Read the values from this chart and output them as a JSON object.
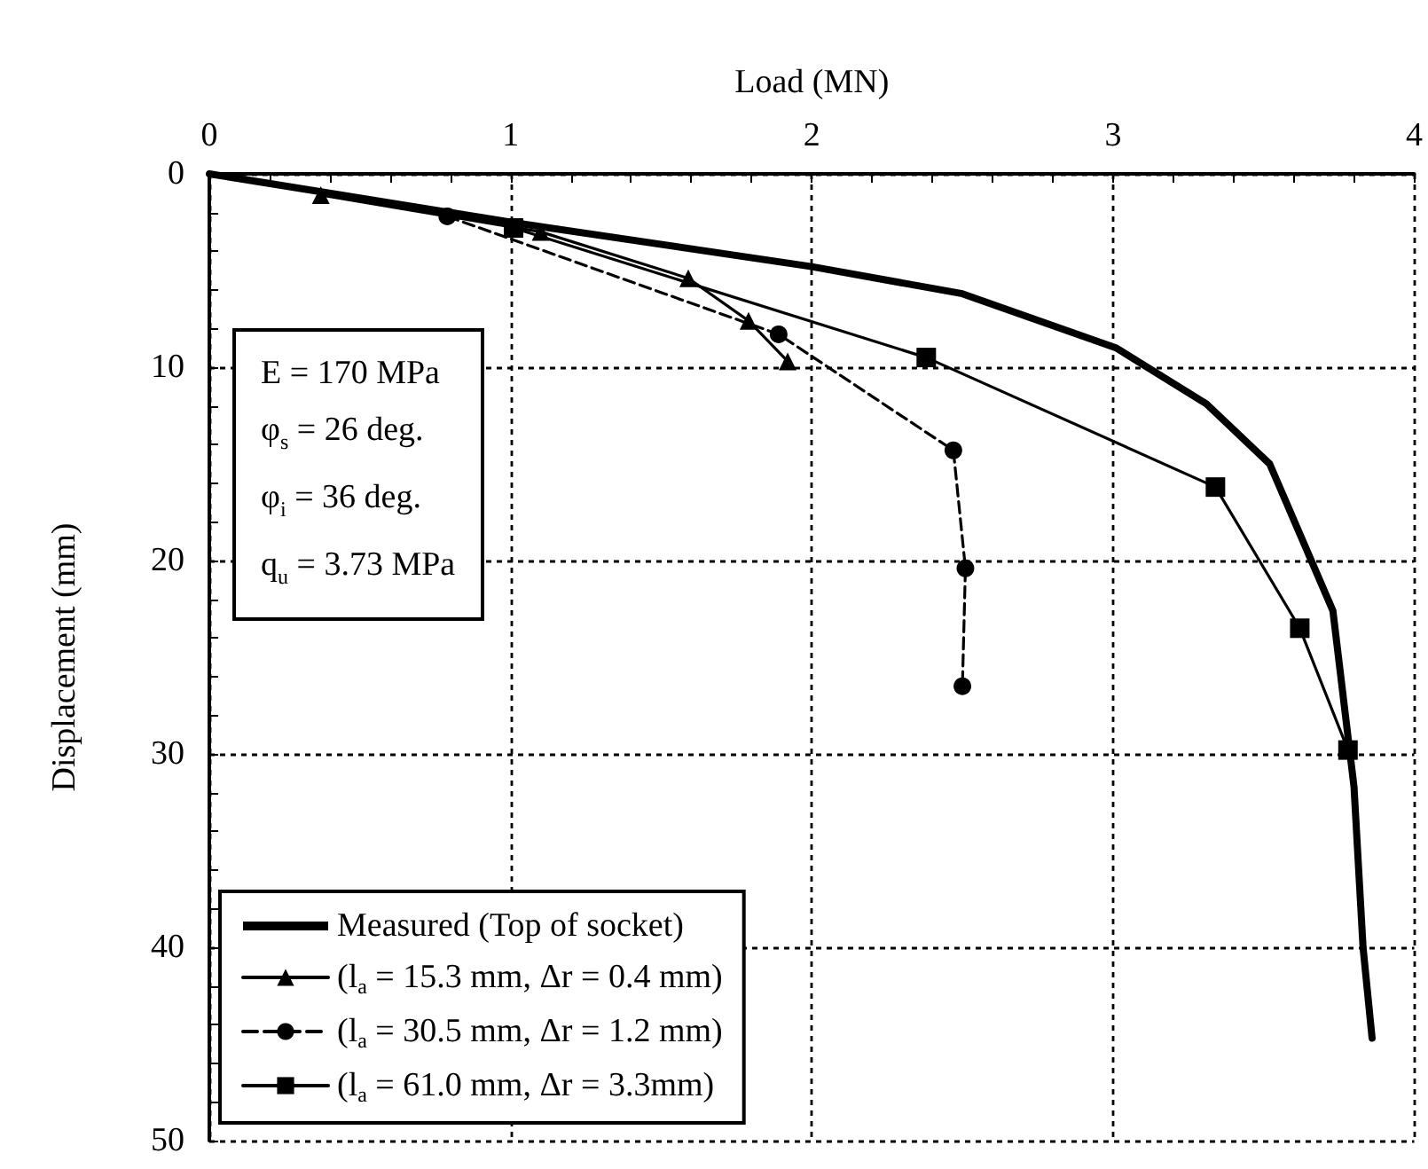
{
  "chart_data": {
    "type": "line",
    "xlabel": "Load (MN)",
    "ylabel": "Displacement (mm)",
    "xlim": [
      0,
      4
    ],
    "xticks": [
      0,
      1,
      2,
      3,
      4
    ],
    "ylim": [
      50,
      0
    ],
    "yticks": [
      0,
      10,
      20,
      30,
      40,
      50
    ],
    "grid": true,
    "legend": "bottom left",
    "line_style": "solid",
    "annotations": [
      "E = 170 MPa",
      "φ$_{s}$ = 26 deg.",
      "φ$_{i}$ = 36 deg.",
      "q$_{u}$ = 3.73 MPa"
    ],
    "series": [
      {
        "name": "Measured (Top of socket)",
        "color": "#000000",
        "marker": "none",
        "x": [
          0,
          1.0,
          2.0,
          2.5,
          3.01,
          3.31,
          3.52,
          3.73,
          3.8,
          3.83,
          3.86
        ],
        "values": [
          0,
          2.5,
          4.8,
          6.2,
          9.0,
          11.9,
          15.0,
          22.6,
          31.7,
          40,
          44.7
        ]
      },
      {
        "name": "(l$_{a}$ = 15.3 mm, Δr = 0.4 mm)",
        "color": "#000000",
        "marker": "triangle",
        "x": [
          0.37,
          1.1,
          1.59,
          1.79,
          1.92
        ],
        "values": [
          1.1,
          3.0,
          5.4,
          7.6,
          9.7
        ]
      },
      {
        "name": "(l$_{a}$ = 30.5 mm, Δr = 1.2 mm)",
        "color": "#000000",
        "marker": "circle",
        "line_style": "dashed",
        "x": [
          0.79,
          1.89,
          2.47,
          2.51,
          2.5
        ],
        "values": [
          2.2,
          8.3,
          14.3,
          20.4,
          26.5
        ]
      },
      {
        "name": "(l$_{a}$ = 61.0 mm, Δr = 3.3mm)",
        "color": "#000000",
        "marker": "square",
        "x": [
          1.01,
          2.38,
          3.34,
          3.62,
          3.78
        ],
        "values": [
          2.8,
          9.5,
          16.2,
          23.5,
          29.8
        ]
      }
    ]
  }
}
